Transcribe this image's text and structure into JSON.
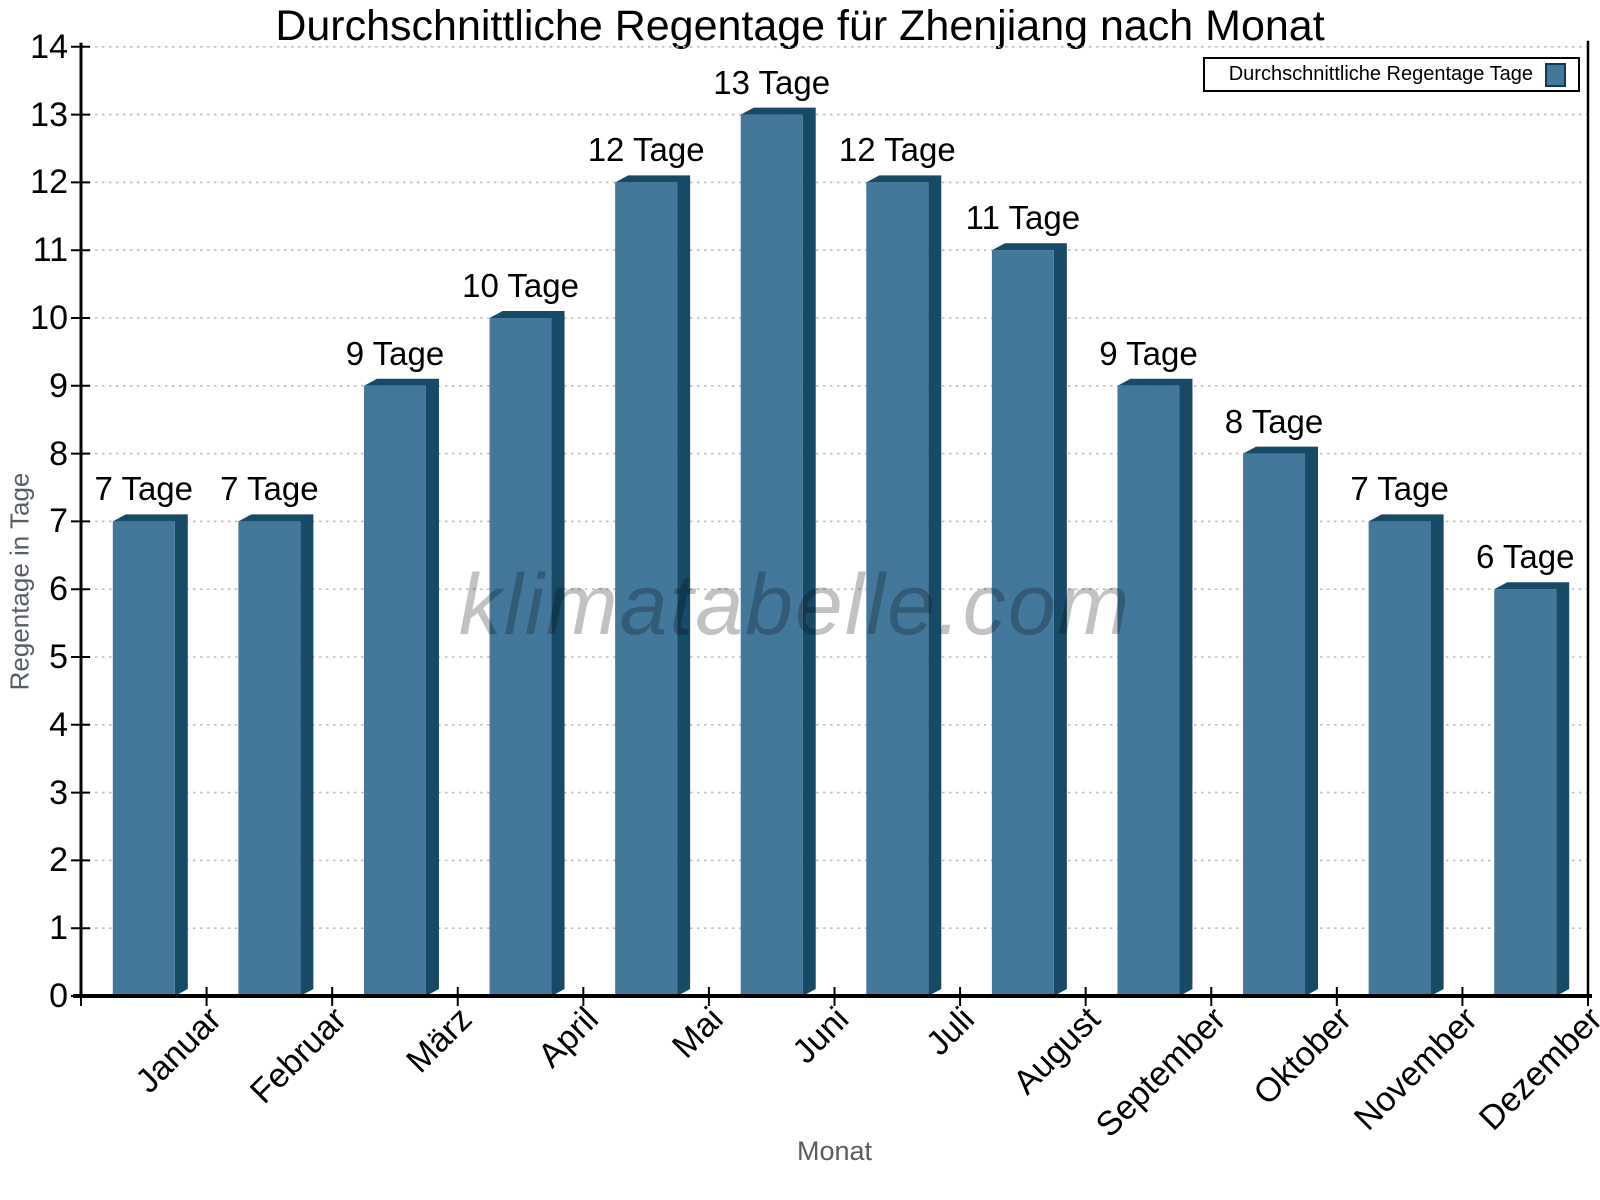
{
  "title": "Durchschnittliche Regentage für Zhenjiang nach Monat",
  "legend": {
    "label": "Durchschnittliche Regentage Tage"
  },
  "watermark": "klimatabelle.com",
  "x_axis_title": "Monat",
  "y_axis_title": "Regentage in Tage",
  "chart_data": {
    "type": "bar",
    "title": "Durchschnittliche Regentage für Zhenjiang nach Monat",
    "categories": [
      "Januar",
      "Februar",
      "März",
      "April",
      "Mai",
      "Juni",
      "Juli",
      "August",
      "September",
      "Oktober",
      "November",
      "Dezember"
    ],
    "values": [
      7,
      7,
      9,
      10,
      12,
      13,
      12,
      11,
      9,
      8,
      7,
      6
    ],
    "value_labels": [
      "7 Tage",
      "7 Tage",
      "9 Tage",
      "10 Tage",
      "12 Tage",
      "13 Tage",
      "12 Tage",
      "11 Tage",
      "9 Tage",
      "8 Tage",
      "7 Tage",
      "6 Tage"
    ],
    "series": [
      {
        "name": "Durchschnittliche Regentage Tage",
        "values": [
          7,
          7,
          9,
          10,
          12,
          13,
          12,
          11,
          9,
          8,
          7,
          6
        ]
      }
    ],
    "xlabel": "Monat",
    "ylabel": "Regentage in Tage",
    "ylim": [
      0,
      14
    ],
    "y_tick_step": 1,
    "grid": "horizontal dotted",
    "legend_position": "top-right",
    "colors": {
      "bar_face": "#44789b",
      "bar_shade": "#174a66",
      "gridline": "#bdbdbd",
      "axis": "#000000",
      "axis_title_text": "#565d63"
    }
  }
}
